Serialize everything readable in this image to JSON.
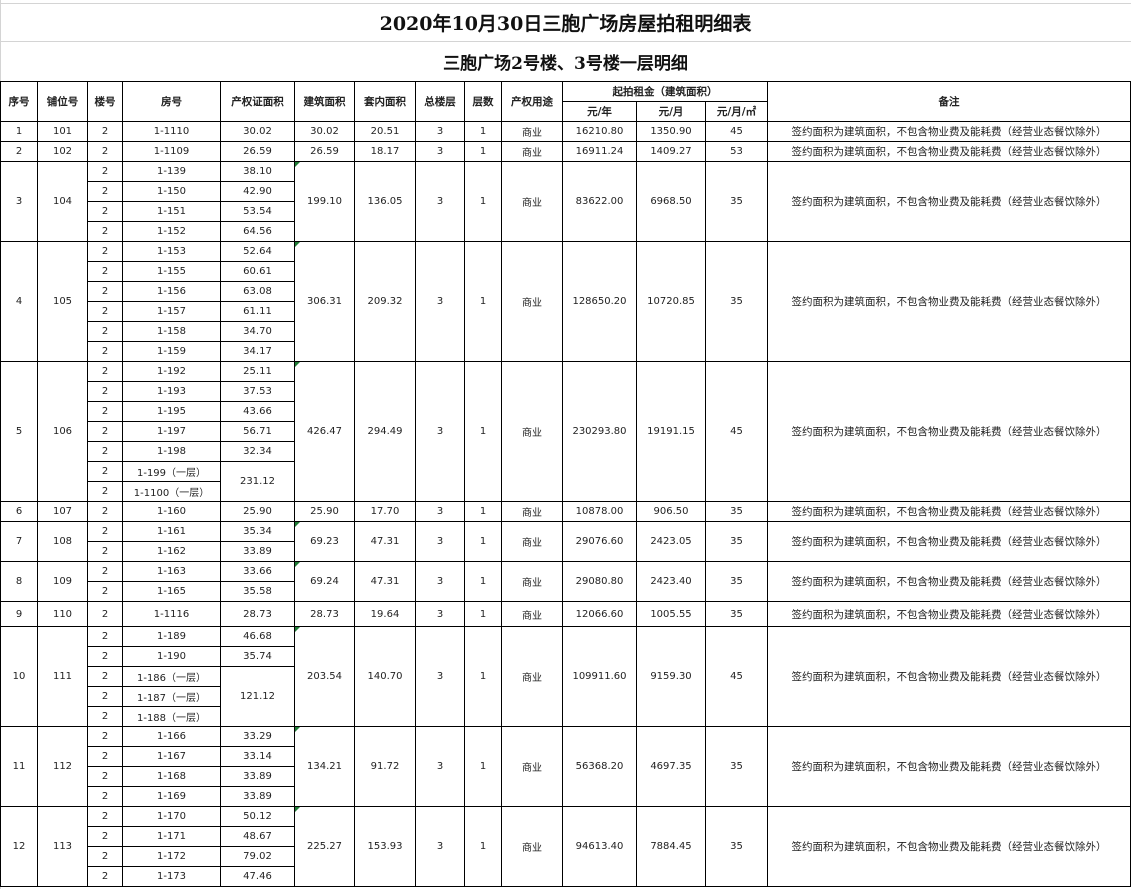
{
  "title": "2020年10月30日三胞广场房屋拍租明细表",
  "subtitle": "三胞广场2号楼、3号楼一层明细",
  "headers": {
    "seq": "序号",
    "shop": "铺位号",
    "building": "楼号",
    "room": "房号",
    "cert_area": "产权证面积",
    "build_area": "建筑面积",
    "inner_area": "套内面积",
    "total_floors": "总楼层",
    "floor": "层数",
    "usage": "产权用途",
    "rent_group": "起拍租金（建筑面积）",
    "per_year": "元/年",
    "per_month": "元/月",
    "per_month_sqm": "元/月/㎡",
    "note": "备注"
  },
  "rows": [
    {
      "seq": "1",
      "shop": "101",
      "units": [
        {
          "building": "2",
          "room": "1-1110"
        }
      ],
      "cert_areas": [
        {
          "value": "30.02",
          "span": 1
        }
      ],
      "build_area": "30.02",
      "inner_area": "20.51",
      "total_floors": "3",
      "floor": "1",
      "usage": "商业",
      "per_year": "16210.80",
      "per_month": "1350.90",
      "per_month_sqm": "45",
      "note": "签约面积为建筑面积，不包含物业费及能耗费（经营业态餐饮除外）"
    },
    {
      "seq": "2",
      "shop": "102",
      "units": [
        {
          "building": "2",
          "room": "1-1109"
        }
      ],
      "cert_areas": [
        {
          "value": "26.59",
          "span": 1
        }
      ],
      "build_area": "26.59",
      "inner_area": "18.17",
      "total_floors": "3",
      "floor": "1",
      "usage": "商业",
      "per_year": "16911.24",
      "per_month": "1409.27",
      "per_month_sqm": "53",
      "note": "签约面积为建筑面积，不包含物业费及能耗费（经营业态餐饮除外）"
    },
    {
      "seq": "3",
      "shop": "104",
      "units": [
        {
          "building": "2",
          "room": "1-139"
        },
        {
          "building": "2",
          "room": "1-150"
        },
        {
          "building": "2",
          "room": "1-151"
        },
        {
          "building": "2",
          "room": "1-152"
        }
      ],
      "cert_areas": [
        {
          "value": "38.10",
          "span": 1
        },
        {
          "value": "42.90",
          "span": 1
        },
        {
          "value": "53.54",
          "span": 1
        },
        {
          "value": "64.56",
          "span": 1
        }
      ],
      "build_area": "199.10",
      "inner_area": "136.05",
      "total_floors": "3",
      "floor": "1",
      "usage": "商业",
      "per_year": "83622.00",
      "per_month": "6968.50",
      "per_month_sqm": "35",
      "note": "签约面积为建筑面积，不包含物业费及能耗费（经营业态餐饮除外）"
    },
    {
      "seq": "4",
      "shop": "105",
      "units": [
        {
          "building": "2",
          "room": "1-153"
        },
        {
          "building": "2",
          "room": "1-155"
        },
        {
          "building": "2",
          "room": "1-156"
        },
        {
          "building": "2",
          "room": "1-157"
        },
        {
          "building": "2",
          "room": "1-158"
        },
        {
          "building": "2",
          "room": "1-159"
        }
      ],
      "cert_areas": [
        {
          "value": "52.64",
          "span": 1
        },
        {
          "value": "60.61",
          "span": 1
        },
        {
          "value": "63.08",
          "span": 1
        },
        {
          "value": "61.11",
          "span": 1
        },
        {
          "value": "34.70",
          "span": 1
        },
        {
          "value": "34.17",
          "span": 1
        }
      ],
      "build_area": "306.31",
      "inner_area": "209.32",
      "total_floors": "3",
      "floor": "1",
      "usage": "商业",
      "per_year": "128650.20",
      "per_month": "10720.85",
      "per_month_sqm": "35",
      "note": "签约面积为建筑面积，不包含物业费及能耗费（经营业态餐饮除外）"
    },
    {
      "seq": "5",
      "shop": "106",
      "units": [
        {
          "building": "2",
          "room": "1-192"
        },
        {
          "building": "2",
          "room": "1-193"
        },
        {
          "building": "2",
          "room": "1-195"
        },
        {
          "building": "2",
          "room": "1-197"
        },
        {
          "building": "2",
          "room": "1-198"
        },
        {
          "building": "2",
          "room": "1-199（一层）"
        },
        {
          "building": "2",
          "room": "1-1100（一层）"
        }
      ],
      "cert_areas": [
        {
          "value": "25.11",
          "span": 1
        },
        {
          "value": "37.53",
          "span": 1
        },
        {
          "value": "43.66",
          "span": 1
        },
        {
          "value": "56.71",
          "span": 1
        },
        {
          "value": "32.34",
          "span": 1
        },
        {
          "value": "231.12",
          "span": 2
        }
      ],
      "build_area": "426.47",
      "inner_area": "294.49",
      "total_floors": "3",
      "floor": "1",
      "usage": "商业",
      "per_year": "230293.80",
      "per_month": "19191.15",
      "per_month_sqm": "45",
      "note": "签约面积为建筑面积，不包含物业费及能耗费（经营业态餐饮除外）"
    },
    {
      "seq": "6",
      "shop": "107",
      "units": [
        {
          "building": "2",
          "room": "1-160"
        }
      ],
      "cert_areas": [
        {
          "value": "25.90",
          "span": 1
        }
      ],
      "build_area": "25.90",
      "inner_area": "17.70",
      "total_floors": "3",
      "floor": "1",
      "usage": "商业",
      "per_year": "10878.00",
      "per_month": "906.50",
      "per_month_sqm": "35",
      "note": "签约面积为建筑面积，不包含物业费及能耗费（经营业态餐饮除外）"
    },
    {
      "seq": "7",
      "shop": "108",
      "units": [
        {
          "building": "2",
          "room": "1-161"
        },
        {
          "building": "2",
          "room": "1-162"
        }
      ],
      "cert_areas": [
        {
          "value": "35.34",
          "span": 1
        },
        {
          "value": "33.89",
          "span": 1
        }
      ],
      "build_area": "69.23",
      "inner_area": "47.31",
      "total_floors": "3",
      "floor": "1",
      "usage": "商业",
      "per_year": "29076.60",
      "per_month": "2423.05",
      "per_month_sqm": "35",
      "note": "签约面积为建筑面积，不包含物业费及能耗费（经营业态餐饮除外）"
    },
    {
      "seq": "8",
      "shop": "109",
      "units": [
        {
          "building": "2",
          "room": "1-163"
        },
        {
          "building": "2",
          "room": "1-165"
        }
      ],
      "cert_areas": [
        {
          "value": "33.66",
          "span": 1
        },
        {
          "value": "35.58",
          "span": 1
        }
      ],
      "build_area": "69.24",
      "inner_area": "47.31",
      "total_floors": "3",
      "floor": "1",
      "usage": "商业",
      "per_year": "29080.80",
      "per_month": "2423.40",
      "per_month_sqm": "35",
      "note": "签约面积为建筑面积，不包含物业费及能耗费（经营业态餐饮除外）"
    },
    {
      "seq": "9",
      "shop": "110",
      "units": [
        {
          "building": "2",
          "room": "1-1116"
        }
      ],
      "cert_areas": [
        {
          "value": "28.73",
          "span": 1
        }
      ],
      "build_area": "28.73",
      "inner_area": "19.64",
      "total_floors": "3",
      "floor": "1",
      "usage": "商业",
      "per_year": "12066.60",
      "per_month": "1005.55",
      "per_month_sqm": "35",
      "note": "签约面积为建筑面积，不包含物业费及能耗费（经营业态餐饮除外）"
    },
    {
      "seq": "10",
      "shop": "111",
      "units": [
        {
          "building": "2",
          "room": "1-189"
        },
        {
          "building": "2",
          "room": "1-190"
        },
        {
          "building": "2",
          "room": "1-186（一层）"
        },
        {
          "building": "2",
          "room": "1-187（一层）"
        },
        {
          "building": "2",
          "room": "1-188（一层）"
        }
      ],
      "cert_areas": [
        {
          "value": "46.68",
          "span": 1
        },
        {
          "value": "35.74",
          "span": 1
        },
        {
          "value": "121.12",
          "span": 3
        }
      ],
      "build_area": "203.54",
      "inner_area": "140.70",
      "total_floors": "3",
      "floor": "1",
      "usage": "商业",
      "per_year": "109911.60",
      "per_month": "9159.30",
      "per_month_sqm": "45",
      "note": "签约面积为建筑面积，不包含物业费及能耗费（经营业态餐饮除外）"
    },
    {
      "seq": "11",
      "shop": "112",
      "units": [
        {
          "building": "2",
          "room": "1-166"
        },
        {
          "building": "2",
          "room": "1-167"
        },
        {
          "building": "2",
          "room": "1-168"
        },
        {
          "building": "2",
          "room": "1-169"
        }
      ],
      "cert_areas": [
        {
          "value": "33.29",
          "span": 1
        },
        {
          "value": "33.14",
          "span": 1
        },
        {
          "value": "33.89",
          "span": 1
        },
        {
          "value": "33.89",
          "span": 1
        }
      ],
      "build_area": "134.21",
      "inner_area": "91.72",
      "total_floors": "3",
      "floor": "1",
      "usage": "商业",
      "per_year": "56368.20",
      "per_month": "4697.35",
      "per_month_sqm": "35",
      "note": "签约面积为建筑面积，不包含物业费及能耗费（经营业态餐饮除外）"
    },
    {
      "seq": "12",
      "shop": "113",
      "units": [
        {
          "building": "2",
          "room": "1-170"
        },
        {
          "building": "2",
          "room": "1-171"
        },
        {
          "building": "2",
          "room": "1-172"
        },
        {
          "building": "2",
          "room": "1-173"
        }
      ],
      "cert_areas": [
        {
          "value": "50.12",
          "span": 1
        },
        {
          "value": "48.67",
          "span": 1
        },
        {
          "value": "79.02",
          "span": 1
        },
        {
          "value": "47.46",
          "span": 1
        }
      ],
      "build_area": "225.27",
      "inner_area": "153.93",
      "total_floors": "3",
      "floor": "1",
      "usage": "商业",
      "per_year": "94613.40",
      "per_month": "7884.45",
      "per_month_sqm": "35",
      "note": "签约面积为建筑面积，不包含物业费及能耗费（经营业态餐饮除外）"
    }
  ]
}
